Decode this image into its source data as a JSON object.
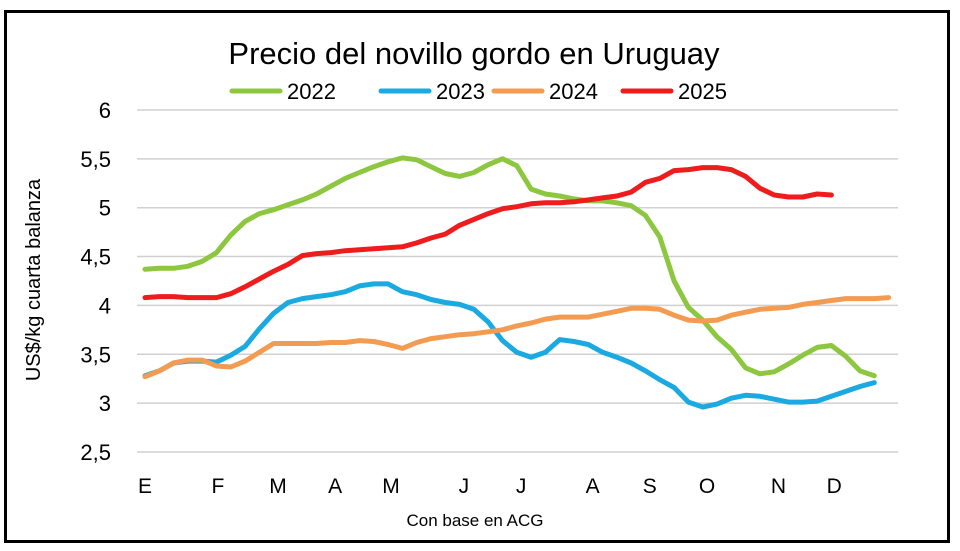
{
  "chart_data": {
    "type": "line",
    "title": "Precio del novillo gordo en Uruguay",
    "xlabel": "Con base en ACG",
    "ylabel": "US$/kg cuarta balanza",
    "ylim": [
      2.5,
      6
    ],
    "yticks": [
      2.5,
      3,
      3.5,
      4,
      4.5,
      5,
      5.5,
      6
    ],
    "ytick_labels": [
      "2,5",
      "3",
      "3,5",
      "4",
      "4,5",
      "5",
      "5,5",
      "6"
    ],
    "x_unit": "week",
    "xlim": [
      0,
      52
    ],
    "xticks": [
      {
        "label": "E",
        "week": 0
      },
      {
        "label": "F",
        "week": 5.1
      },
      {
        "label": "M",
        "week": 9.3
      },
      {
        "label": "A",
        "week": 13.3
      },
      {
        "label": "M",
        "week": 17.2
      },
      {
        "label": "J",
        "week": 22.3
      },
      {
        "label": "J",
        "week": 26.3
      },
      {
        "label": "A",
        "week": 31.3
      },
      {
        "label": "S",
        "week": 35.3
      },
      {
        "label": "O",
        "week": 39.3
      },
      {
        "label": "N",
        "week": 44.3
      },
      {
        "label": "D",
        "week": 48.2
      }
    ],
    "grid": true,
    "legend_position": "top",
    "series": [
      {
        "name": "2022",
        "color": "#8DC63F",
        "values": [
          4.37,
          4.38,
          4.38,
          4.4,
          4.45,
          4.54,
          4.72,
          4.86,
          4.94,
          4.98,
          5.03,
          5.08,
          5.14,
          5.22,
          5.3,
          5.36,
          5.42,
          5.47,
          5.51,
          5.49,
          5.42,
          5.35,
          5.32,
          5.36,
          5.44,
          5.5,
          5.43,
          5.19,
          5.14,
          5.12,
          5.09,
          5.07,
          5.07,
          5.05,
          5.02,
          4.92,
          4.7,
          4.25,
          3.98,
          3.85,
          3.68,
          3.55,
          3.36,
          3.3,
          3.32,
          3.4,
          3.49,
          3.57,
          3.59,
          3.48,
          3.33,
          3.28
        ]
      },
      {
        "name": "2023",
        "color": "#1BA9E1",
        "values": [
          3.28,
          3.33,
          3.41,
          3.43,
          3.43,
          3.42,
          3.49,
          3.58,
          3.76,
          3.92,
          4.03,
          4.07,
          4.09,
          4.11,
          4.14,
          4.2,
          4.22,
          4.22,
          4.14,
          4.11,
          4.06,
          4.03,
          4.01,
          3.96,
          3.83,
          3.64,
          3.52,
          3.47,
          3.52,
          3.65,
          3.63,
          3.6,
          3.52,
          3.47,
          3.41,
          3.33,
          3.24,
          3.16,
          3.01,
          2.96,
          2.99,
          3.05,
          3.08,
          3.07,
          3.04,
          3.01,
          3.01,
          3.02,
          3.07,
          3.12,
          3.17,
          3.21
        ]
      },
      {
        "name": "2024",
        "color": "#F39B51",
        "values": [
          3.27,
          3.33,
          3.41,
          3.44,
          3.44,
          3.38,
          3.37,
          3.43,
          3.52,
          3.61,
          3.61,
          3.61,
          3.61,
          3.62,
          3.62,
          3.64,
          3.63,
          3.6,
          3.56,
          3.62,
          3.66,
          3.68,
          3.7,
          3.71,
          3.73,
          3.75,
          3.79,
          3.82,
          3.86,
          3.88,
          3.88,
          3.88,
          3.91,
          3.94,
          3.97,
          3.97,
          3.96,
          3.9,
          3.85,
          3.84,
          3.85,
          3.9,
          3.93,
          3.96,
          3.97,
          3.98,
          4.01,
          4.03,
          4.05,
          4.07,
          4.07,
          4.07,
          4.08
        ]
      },
      {
        "name": "2025",
        "color": "#EE1C1C",
        "values": [
          4.08,
          4.09,
          4.09,
          4.08,
          4.08,
          4.08,
          4.12,
          4.19,
          4.27,
          4.35,
          4.42,
          4.51,
          4.53,
          4.54,
          4.56,
          4.57,
          4.58,
          4.59,
          4.6,
          4.64,
          4.69,
          4.73,
          4.82,
          4.88,
          4.94,
          4.99,
          5.01,
          5.04,
          5.05,
          5.05,
          5.06,
          5.08,
          5.1,
          5.12,
          5.16,
          5.26,
          5.3,
          5.38,
          5.39,
          5.41,
          5.41,
          5.39,
          5.32,
          5.2,
          5.13,
          5.11,
          5.11,
          5.14,
          5.13
        ]
      }
    ]
  }
}
